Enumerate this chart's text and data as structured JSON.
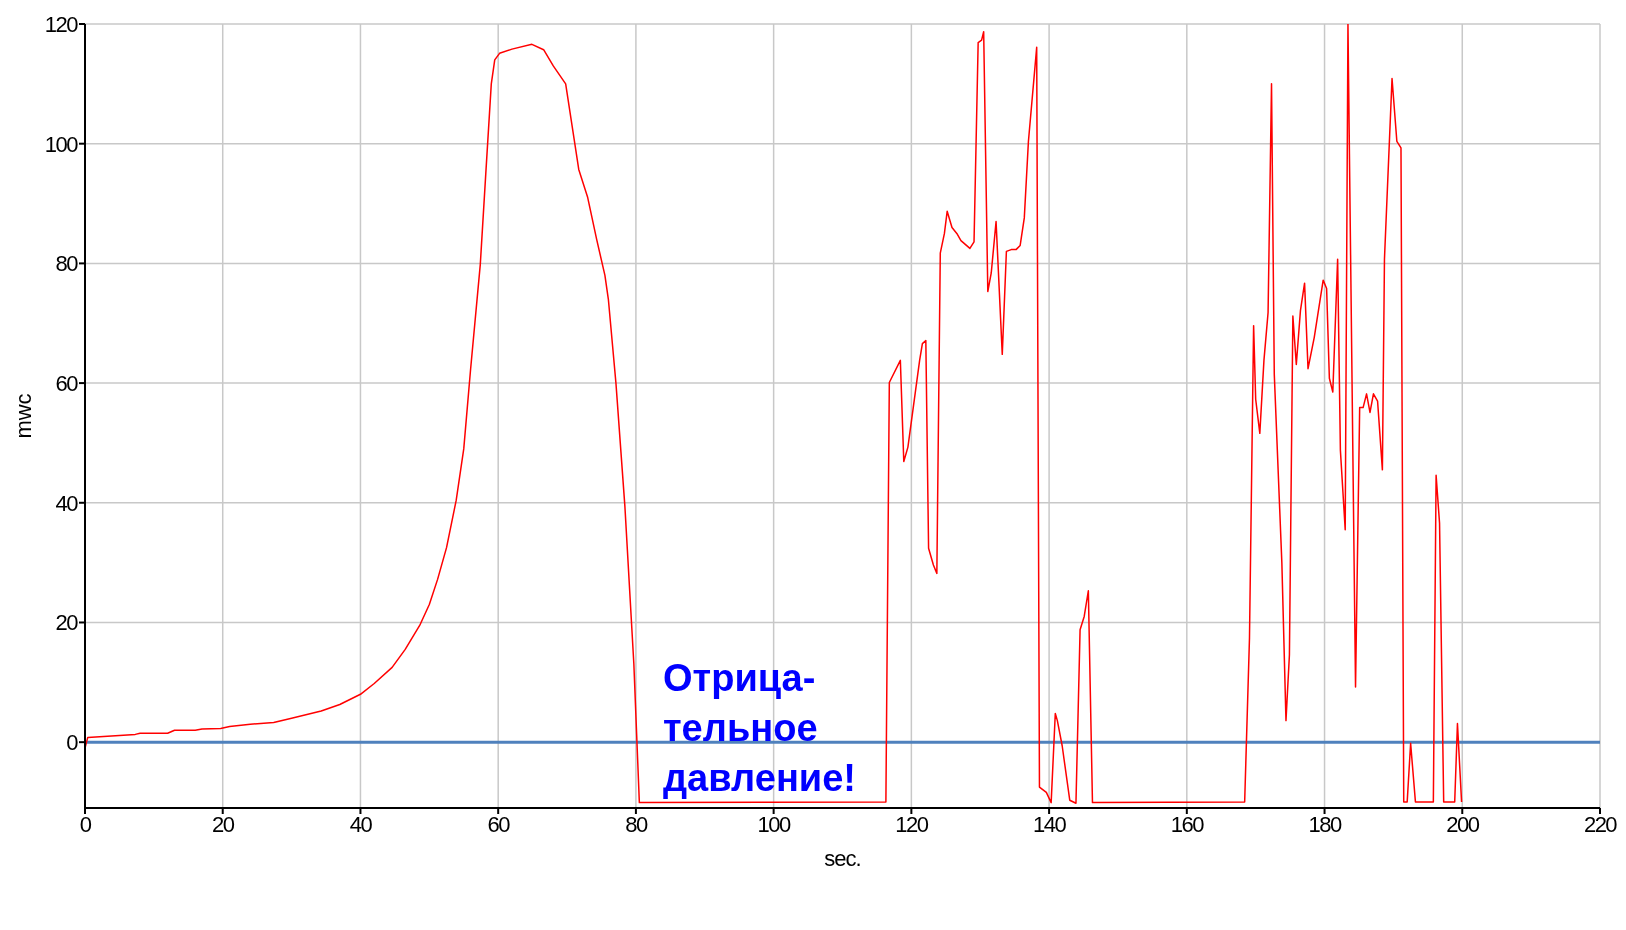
{
  "chart_data": {
    "type": "line",
    "xlabel": "sec.",
    "ylabel": "mwc",
    "xlim": [
      0,
      220
    ],
    "xticks": [
      0,
      20,
      40,
      60,
      80,
      100,
      120,
      140,
      160,
      180,
      200,
      220
    ],
    "ylim": [
      -11,
      120
    ],
    "yticks": [
      0,
      20,
      40,
      60,
      80,
      100,
      120
    ],
    "grid": true,
    "marker": "none",
    "line_style": "solid",
    "ref_lines": [
      {
        "axis": "y",
        "value": 0,
        "color": "#4f81bd"
      }
    ],
    "annotations": [
      "Отрица-\nтельное\nдавление!"
    ],
    "series": [
      {
        "color": "#ff0000",
        "x": [
          0,
          0.4,
          7.3,
          8,
          12,
          13,
          16,
          17,
          19.7,
          21,
          24,
          27.4,
          30,
          34.3,
          37,
          40,
          42,
          44.6,
          46.5,
          48.6,
          50,
          51.2,
          52.5,
          53.9,
          55,
          56,
          57.4,
          58.2,
          59,
          59.5,
          60.2,
          62,
          64.9,
          66.6,
          68,
          69.8,
          71.7,
          73,
          74.3,
          75.5,
          76,
          77.1,
          78.4,
          79.7,
          80.5,
          116.3,
          116.8,
          118.4,
          118.9,
          119.5,
          121.2,
          121.6,
          122.1,
          122.5,
          123.2,
          123.7,
          124.2,
          124.8,
          125.2,
          125.9,
          126.6,
          127.2,
          128.5,
          129.1,
          129.7,
          130.2,
          130.5,
          131.1,
          131.6,
          132.3,
          133.2,
          133.8,
          134.5,
          135.2,
          135.8,
          136.4,
          137,
          138.2,
          138.6,
          139.6,
          140.3,
          140.9,
          141.2,
          141.9,
          143,
          143.9,
          144.5,
          145.1,
          145.7,
          146.3,
          168.4,
          169.1,
          169.7,
          170,
          170.6,
          171.2,
          171.8,
          172.3,
          172.7,
          173.8,
          174.4,
          174.9,
          175.4,
          175.9,
          176.5,
          177.1,
          177.6,
          178.5,
          179.8,
          180.3,
          180.7,
          181.2,
          181.9,
          182.3,
          183,
          183.4,
          184.5,
          185.1,
          185.6,
          186.1,
          186.6,
          187.1,
          187.7,
          188.4,
          188.7,
          189.8,
          190.5,
          191.1,
          191.5,
          192,
          192.5,
          193.2,
          195.8,
          196.2,
          196.7,
          197.3,
          198.9,
          199.3,
          199.9
        ],
        "values": [
          -1,
          0.8,
          1.3,
          1.5,
          1.5,
          2,
          2,
          2.2,
          2.3,
          2.6,
          3,
          3.3,
          4,
          5.2,
          6.3,
          8,
          9.8,
          12.5,
          15.5,
          19.5,
          23,
          27.2,
          32.5,
          40.4,
          49,
          62.4,
          79.8,
          95,
          110,
          114,
          115.1,
          115.8,
          116.6,
          115.7,
          113,
          110,
          95.7,
          91,
          84,
          78,
          74,
          60,
          39.4,
          13.1,
          -10.1,
          -10,
          60.1,
          63.8,
          46.9,
          49.3,
          63.8,
          66.6,
          67.1,
          32.4,
          29.6,
          28.2,
          81.7,
          85,
          88.7,
          86,
          85,
          83.8,
          82.5,
          83.6,
          116.9,
          117.3,
          118.7,
          75.3,
          78.4,
          87,
          64.8,
          82,
          82.3,
          82.3,
          83,
          87.6,
          100.4,
          116.1,
          -7.5,
          -8.4,
          -10.1,
          4.8,
          3.6,
          -0.6,
          -9.7,
          -10.2,
          18.8,
          21,
          25.3,
          -10.1,
          -10,
          17.4,
          69.6,
          57.3,
          51.6,
          63.8,
          71.8,
          110,
          61.5,
          30,
          3.6,
          14.6,
          71.2,
          63.1,
          72.1,
          76.7,
          62.4,
          67.6,
          77.2,
          75.8,
          60.8,
          58.5,
          80.7,
          48.8,
          35.5,
          120,
          9.2,
          55.9,
          55.9,
          58.2,
          55.1,
          58.2,
          57,
          45.5,
          80.7,
          110.9,
          100.4,
          99.3,
          -10,
          -10,
          -0.2,
          -10,
          -10,
          44.6,
          36.6,
          -10,
          -10,
          3.1,
          -10
        ]
      }
    ]
  }
}
